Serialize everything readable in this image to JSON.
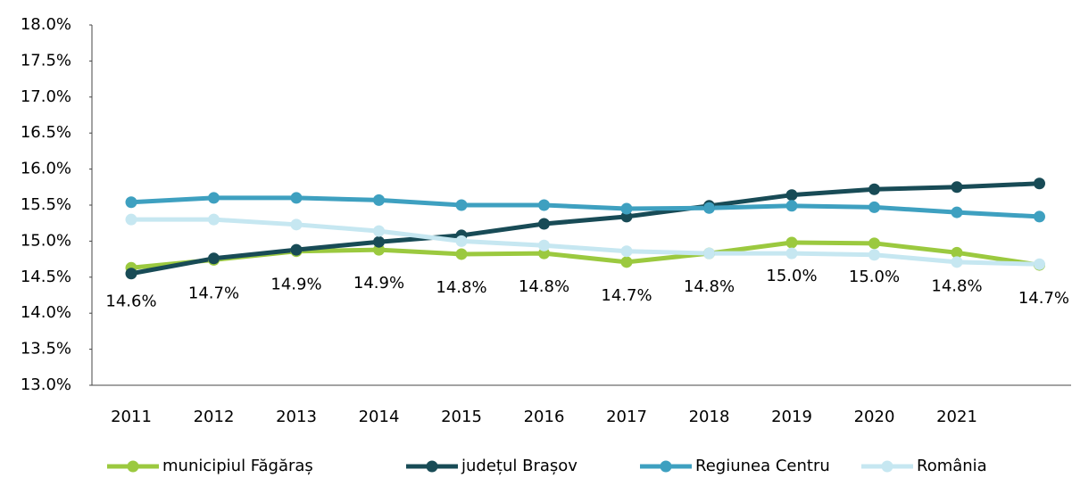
{
  "chart_data": {
    "type": "line",
    "categories": [
      "2011",
      "2012",
      "2013",
      "2014",
      "2015",
      "2016",
      "2017",
      "2018",
      "2019",
      "2020",
      "2021",
      null
    ],
    "series": [
      {
        "name": "municipiul Făgăraș",
        "color": "#9bc93f",
        "values": [
          14.63,
          14.74,
          14.86,
          14.88,
          14.82,
          14.83,
          14.71,
          14.83,
          14.98,
          14.97,
          14.84,
          14.67
        ],
        "value_labels": [
          "14.6%",
          "14.7%",
          "14.9%",
          "14.9%",
          "14.8%",
          "14.8%",
          "14.7%",
          "14.8%",
          "15.0%",
          "15.0%",
          "14.8%",
          "14.7%"
        ]
      },
      {
        "name": "județul Brașov",
        "color": "#184b56",
        "values": [
          14.55,
          14.76,
          14.88,
          14.99,
          15.08,
          15.24,
          15.34,
          15.49,
          15.64,
          15.72,
          15.75,
          15.8
        ]
      },
      {
        "name": "Regiunea Centru",
        "color": "#3ea0c0",
        "values": [
          15.54,
          15.6,
          15.6,
          15.57,
          15.5,
          15.5,
          15.45,
          15.46,
          15.49,
          15.47,
          15.4,
          15.34
        ]
      },
      {
        "name": "România",
        "color": "#c6e7f1",
        "values": [
          15.3,
          15.3,
          15.23,
          15.14,
          15.0,
          14.94,
          14.86,
          14.83,
          14.83,
          14.81,
          14.71,
          14.68
        ]
      }
    ],
    "ylim": [
      13,
      18
    ],
    "yticks": [
      {
        "value": 13,
        "label": "13.0%"
      },
      {
        "value": 13.5,
        "label": "13.5%"
      },
      {
        "value": 14,
        "label": "14.0%"
      },
      {
        "value": 14.5,
        "label": "14.5%"
      },
      {
        "value": 15,
        "label": "15.0%"
      },
      {
        "value": 15.5,
        "label": "15.5%"
      },
      {
        "value": 16,
        "label": "16.0%"
      },
      {
        "value": 16.5,
        "label": "16.5%"
      },
      {
        "value": 17,
        "label": "17.0%"
      },
      {
        "value": 17.5,
        "label": "17.5%"
      },
      {
        "value": 18,
        "label": "18.0%"
      }
    ],
    "grid": false,
    "legend": "bottom"
  }
}
